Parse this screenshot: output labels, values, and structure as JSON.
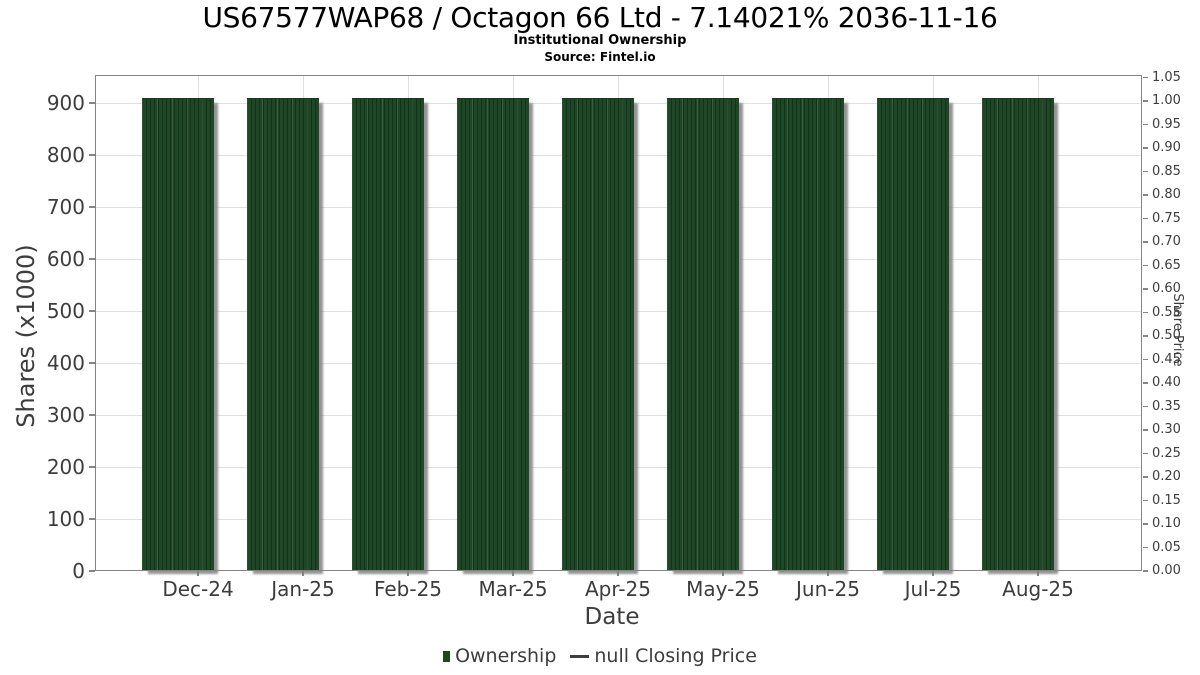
{
  "header": {
    "title": "US67577WAP68 / Octagon 66 Ltd - 7.14021% 2036-11-16",
    "subtitle": "Institutional Ownership",
    "source": "Source: Fintel.io"
  },
  "chart_data": {
    "type": "bar",
    "title": "US67577WAP68 / Octagon 66 Ltd - 7.14021% 2036-11-16",
    "subtitle": "Institutional Ownership",
    "source": "Source: Fintel.io",
    "categories": [
      "Dec-24",
      "Jan-25",
      "Feb-25",
      "Mar-25",
      "Apr-25",
      "May-25",
      "Jun-25",
      "Jul-25",
      "Aug-25"
    ],
    "series": [
      {
        "name": "Ownership",
        "type": "bar",
        "color": "#1d4725",
        "values": [
          908,
          908,
          908,
          908,
          908,
          908,
          908,
          908,
          908
        ]
      },
      {
        "name": "null Closing Price",
        "type": "line",
        "color": "#3d3d3d",
        "values": []
      }
    ],
    "xlabel": "Date",
    "ylabel": "Shares (x1000)",
    "ylabel_right": "Share Price",
    "ylim_left": [
      0,
      954
    ],
    "ylim_right": [
      0,
      1.055
    ],
    "yticks_left": [
      0,
      100,
      200,
      300,
      400,
      500,
      600,
      700,
      800,
      900
    ],
    "yticks_right": [
      0.0,
      0.05,
      0.1,
      0.15,
      0.2,
      0.25,
      0.3,
      0.35,
      0.4,
      0.45,
      0.5,
      0.55,
      0.6,
      0.65,
      0.7,
      0.75,
      0.8,
      0.85,
      0.9,
      0.95,
      1.0,
      1.05
    ],
    "grid": true,
    "legend_position": "bottom"
  },
  "legend": {
    "items": [
      {
        "label": "Ownership",
        "marker": "bar-swatch",
        "color": "#1d4725"
      },
      {
        "label": "null Closing Price",
        "marker": "line-dash",
        "color": "#3d3d3d"
      }
    ]
  }
}
